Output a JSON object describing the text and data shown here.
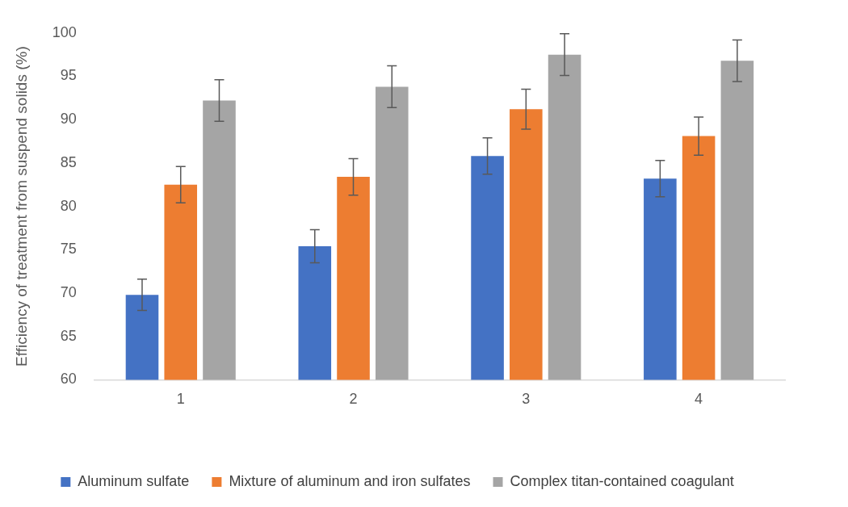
{
  "chart_data": {
    "type": "bar",
    "ylabel": "Efficiency of treatment from suspend solids (%)",
    "categories": [
      "1",
      "2",
      "3",
      "4"
    ],
    "series": [
      {
        "name": "Aluminum sulfate",
        "color": "#4472c4",
        "values": [
          69.8,
          75.4,
          85.8,
          83.2
        ],
        "errors": [
          1.8,
          1.9,
          2.1,
          2.1
        ]
      },
      {
        "name": "Mixture of aluminum and iron sulfates",
        "color": "#ed7d31",
        "values": [
          82.5,
          83.4,
          91.2,
          88.1
        ],
        "errors": [
          2.1,
          2.1,
          2.3,
          2.2
        ]
      },
      {
        "name": "Complex titan-contained coagulant",
        "color": "#a5a5a5",
        "values": [
          92.2,
          93.8,
          97.5,
          96.8
        ],
        "errors": [
          2.4,
          2.4,
          2.4,
          2.4
        ]
      }
    ],
    "ylim": [
      60,
      100
    ],
    "yticks": [
      60,
      65,
      70,
      75,
      80,
      85,
      90,
      95,
      100
    ],
    "grid": false,
    "legend": "bottom"
  }
}
